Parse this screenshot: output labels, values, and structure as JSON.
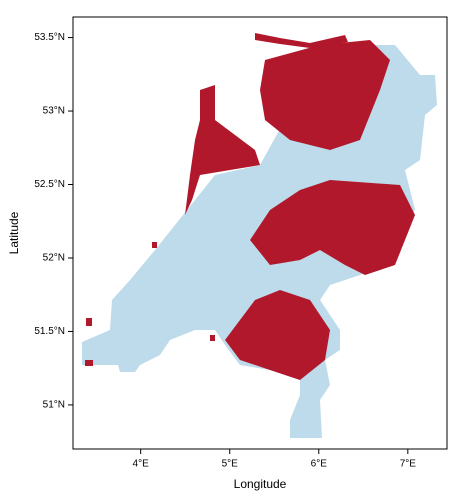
{
  "chart_data": {
    "type": "map",
    "xlabel": "Longitude",
    "ylabel": "Latitude",
    "xlim": [
      3.24,
      7.44
    ],
    "ylim": [
      50.7,
      53.64
    ],
    "xticks": [
      {
        "value": 4,
        "label": "4°E"
      },
      {
        "value": 5,
        "label": "5°E"
      },
      {
        "value": 6,
        "label": "6°E"
      },
      {
        "value": 7,
        "label": "7°E"
      }
    ],
    "yticks": [
      {
        "value": 51,
        "label": "51°N"
      },
      {
        "value": 51.5,
        "label": "51.5°N"
      },
      {
        "value": 52,
        "label": "52°N"
      },
      {
        "value": 52.5,
        "label": "52.5°N"
      },
      {
        "value": 53,
        "label": "53°N"
      },
      {
        "value": 53.5,
        "label": "53.5°N"
      }
    ]
  }
}
